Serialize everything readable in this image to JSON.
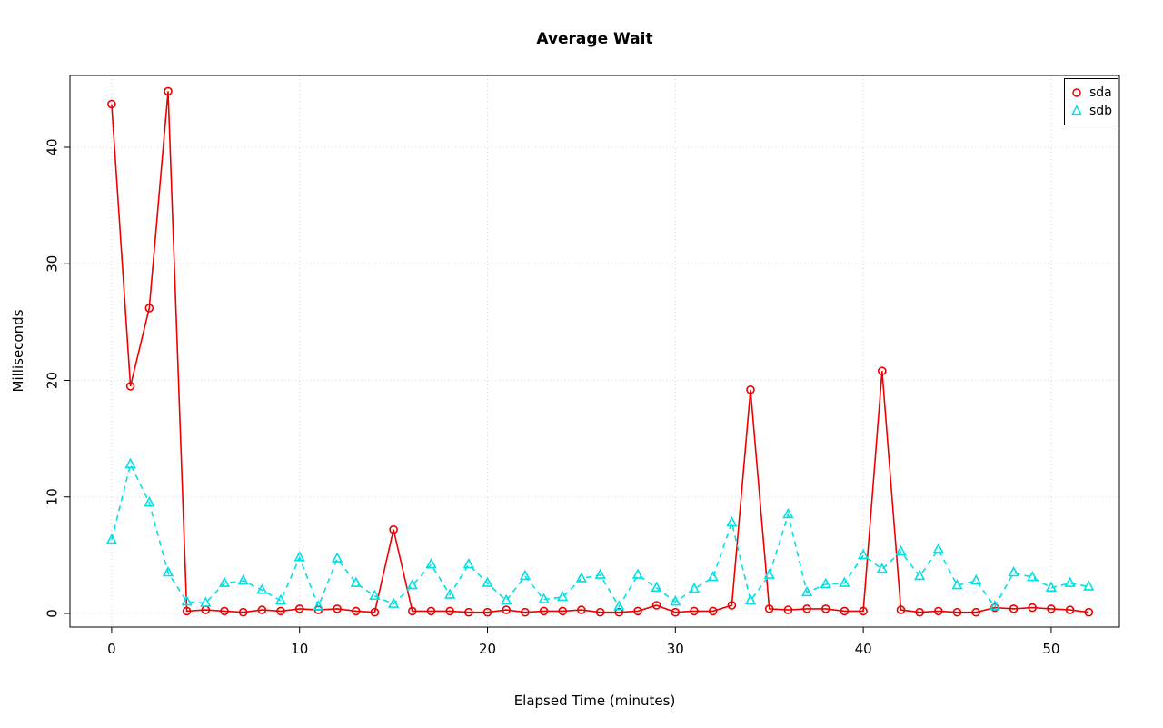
{
  "chart_data": {
    "type": "line",
    "title": "Average Wait",
    "xlabel": "Elapsed Time (minutes)",
    "ylabel": "Milliseconds",
    "xlim": [
      -2.22,
      53.63
    ],
    "ylim": [
      -1.17,
      46.16
    ],
    "xticks": [
      0,
      10,
      20,
      30,
      40,
      50
    ],
    "yticks": [
      0,
      10,
      20,
      30,
      40
    ],
    "grid": true,
    "legend_position": "top-right",
    "x": [
      0,
      1,
      2,
      3,
      4,
      5,
      6,
      7,
      8,
      9,
      10,
      11,
      12,
      13,
      14,
      15,
      16,
      17,
      18,
      19,
      20,
      21,
      22,
      23,
      24,
      25,
      26,
      27,
      28,
      29,
      30,
      31,
      32,
      33,
      34,
      35,
      36,
      37,
      38,
      39,
      40,
      41,
      42,
      43,
      44,
      45,
      46,
      47,
      48,
      49,
      50,
      51,
      52
    ],
    "series": [
      {
        "name": "sda",
        "color": "#ee0000",
        "marker": "circle",
        "line": "solid",
        "values": [
          43.7,
          19.5,
          26.2,
          44.8,
          0.2,
          0.3,
          0.2,
          0.1,
          0.3,
          0.2,
          0.4,
          0.3,
          0.4,
          0.2,
          0.1,
          7.2,
          0.2,
          0.2,
          0.2,
          0.1,
          0.1,
          0.3,
          0.1,
          0.2,
          0.2,
          0.3,
          0.1,
          0.1,
          0.2,
          0.7,
          0.1,
          0.2,
          0.2,
          0.7,
          19.2,
          0.4,
          0.3,
          0.4,
          0.4,
          0.2,
          0.2,
          20.8,
          0.3,
          0.1,
          0.2,
          0.1,
          0.1,
          0.5,
          0.4,
          0.5,
          0.4,
          0.3,
          0.1
        ]
      },
      {
        "name": "sdb",
        "color": "#00e0e6",
        "marker": "triangle",
        "line": "dashed",
        "values": [
          6.3,
          12.8,
          9.5,
          3.5,
          1.0,
          0.9,
          2.6,
          2.8,
          2.0,
          1.1,
          4.8,
          0.6,
          4.7,
          2.6,
          1.5,
          0.8,
          2.4,
          4.2,
          1.6,
          4.2,
          2.6,
          1.1,
          3.2,
          1.2,
          1.4,
          3.0,
          3.3,
          0.6,
          3.3,
          2.2,
          1.0,
          2.1,
          3.1,
          7.8,
          1.1,
          3.3,
          8.5,
          1.8,
          2.5,
          2.6,
          5.0,
          3.8,
          5.3,
          3.2,
          5.5,
          2.4,
          2.8,
          0.6,
          3.5,
          3.1,
          2.2,
          2.6,
          2.3
        ]
      }
    ],
    "grid_color": "#d4d4d4",
    "axis_color": "#000000"
  }
}
